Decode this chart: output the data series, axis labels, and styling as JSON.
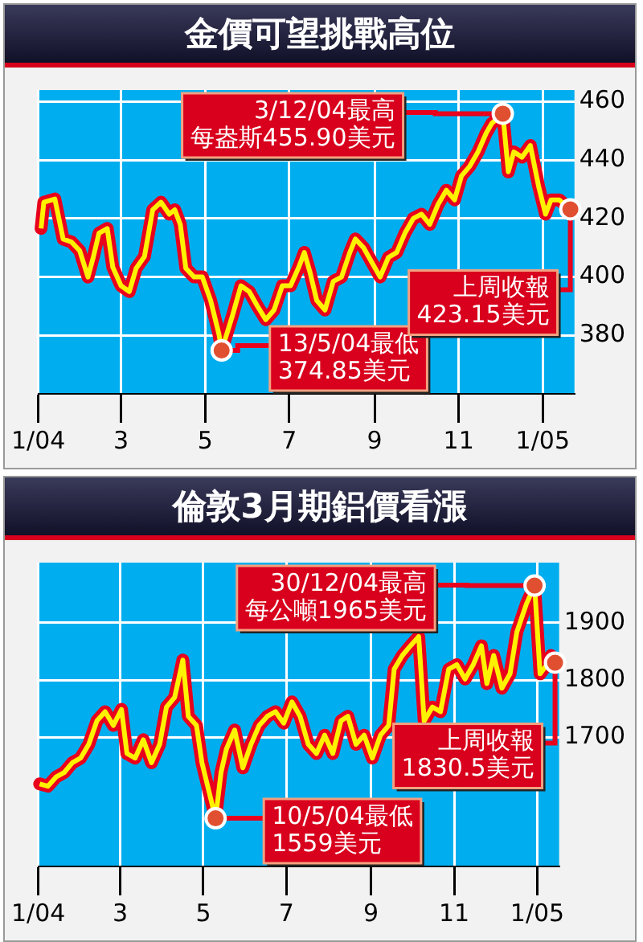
{
  "chart_data": [
    {
      "type": "line",
      "title": "金價可望挑戰高位",
      "color": "#fff200",
      "x": [
        "2004-01-03",
        "2004-01-05",
        "2004-01-13",
        "2004-01-19",
        "2004-01-25",
        "2004-01-31",
        "2004-02-06",
        "2004-02-10",
        "2004-02-14",
        "2004-02-20",
        "2004-02-24",
        "2004-03-01",
        "2004-03-07",
        "2004-03-12",
        "2004-03-18",
        "2004-03-24",
        "2004-03-30",
        "2004-04-05",
        "2004-04-09",
        "2004-04-13",
        "2004-04-17",
        "2004-04-23",
        "2004-04-29",
        "2004-05-05",
        "2004-05-11",
        "2004-05-13",
        "2004-05-21",
        "2004-05-27",
        "2004-06-02",
        "2004-06-08",
        "2004-06-14",
        "2004-06-20",
        "2004-06-26",
        "2004-07-02",
        "2004-07-08",
        "2004-07-12",
        "2004-07-16",
        "2004-07-21",
        "2004-07-27",
        "2004-08-02",
        "2004-08-08",
        "2004-08-14",
        "2004-08-18",
        "2004-08-24",
        "2004-08-30",
        "2004-09-05",
        "2004-09-11",
        "2004-09-17",
        "2004-09-23",
        "2004-09-29",
        "2004-10-05",
        "2004-10-11",
        "2004-10-17",
        "2004-10-23",
        "2004-10-29",
        "2004-11-03",
        "2004-11-09",
        "2004-11-15",
        "2004-11-21",
        "2004-11-25",
        "2004-12-03",
        "2004-12-07",
        "2004-12-11",
        "2004-12-17",
        "2004-12-23",
        "2004-12-29",
        "2005-01-03",
        "2005-01-07",
        "2005-01-13",
        "2005-01-21"
      ],
      "values": [
        416.6,
        425.6,
        426.7,
        413,
        412,
        409,
        400,
        407,
        415,
        416.6,
        403.4,
        397,
        395,
        403,
        407,
        423,
        425.6,
        421.5,
        423,
        418,
        403,
        400,
        400,
        392,
        380.5,
        374.85,
        387,
        397,
        395,
        390,
        385.4,
        388.7,
        397,
        397,
        403.4,
        408.4,
        401.8,
        392,
        388.7,
        398.5,
        400,
        408.4,
        413,
        410,
        405,
        400,
        406.7,
        408.4,
        415,
        420,
        421.5,
        418,
        424.8,
        429.7,
        426.4,
        434.6,
        437.9,
        442.8,
        449.3,
        452.6,
        455.9,
        436,
        442.8,
        441,
        445,
        431,
        421.5,
        426.4,
        426.4,
        423.15
      ],
      "xlim": [
        "2004-01-01",
        "2005-01-24"
      ],
      "xticks": [
        {
          "value": "2004-01-01",
          "label": "1/04"
        },
        {
          "value": "2004-03-01",
          "label": "3"
        },
        {
          "value": "2004-05-01",
          "label": "5"
        },
        {
          "value": "2004-07-01",
          "label": "7"
        },
        {
          "value": "2004-09-01",
          "label": "9"
        },
        {
          "value": "2004-11-01",
          "label": "11"
        },
        {
          "value": "2005-01-01",
          "label": "1/05"
        }
      ],
      "ylim": [
        360,
        464
      ],
      "yticks": [
        380,
        400,
        420,
        440,
        460
      ],
      "grid": true,
      "annotations": [
        {
          "text": "3/12/04最高",
          "x": "2004-12-03",
          "y": 455.9
        },
        "每盎斯455.90美元",
        {
          "text": "13/5/04最低",
          "x": "2004-05-13",
          "y": 374.85
        },
        "374.85美元",
        {
          "text": "上周收報",
          "x": "2005-01-21",
          "y": 423.15
        },
        "423.15美元"
      ]
    },
    {
      "type": "line",
      "title": "倫敦3月期鋁價看漲",
      "color": "#fff200",
      "x": [
        "2004-01-02",
        "2004-01-08",
        "2004-01-14",
        "2004-01-20",
        "2004-01-26",
        "2004-02-01",
        "2004-02-07",
        "2004-02-13",
        "2004-02-19",
        "2004-02-25",
        "2004-03-02",
        "2004-03-06",
        "2004-03-12",
        "2004-03-18",
        "2004-03-24",
        "2004-03-30",
        "2004-04-04",
        "2004-04-10",
        "2004-04-16",
        "2004-04-20",
        "2004-04-26",
        "2004-04-30",
        "2004-05-10",
        "2004-05-14",
        "2004-05-18",
        "2004-05-24",
        "2004-05-30",
        "2004-06-05",
        "2004-06-11",
        "2004-06-17",
        "2004-06-23",
        "2004-06-29",
        "2004-07-05",
        "2004-07-11",
        "2004-07-17",
        "2004-07-23",
        "2004-07-29",
        "2004-08-04",
        "2004-08-10",
        "2004-08-15",
        "2004-08-21",
        "2004-08-27",
        "2004-09-02",
        "2004-09-08",
        "2004-09-14",
        "2004-09-18",
        "2004-09-24",
        "2004-09-30",
        "2004-10-06",
        "2004-10-10",
        "2004-10-16",
        "2004-10-22",
        "2004-10-28",
        "2004-11-03",
        "2004-11-09",
        "2004-11-15",
        "2004-11-21",
        "2004-11-25",
        "2004-11-30",
        "2004-12-06",
        "2004-12-12",
        "2004-12-17",
        "2004-12-24",
        "2004-12-30",
        "2005-01-03",
        "2005-01-08",
        "2005-01-11",
        "2005-01-14"
      ],
      "values": [
        1619,
        1615,
        1631,
        1639,
        1656,
        1664,
        1688,
        1729,
        1745,
        1721,
        1749,
        1672,
        1664,
        1696,
        1656,
        1688,
        1753,
        1770,
        1835,
        1737,
        1721,
        1656,
        1559,
        1639,
        1680,
        1713,
        1647,
        1688,
        1721,
        1737,
        1745,
        1725,
        1762,
        1737,
        1688,
        1672,
        1704,
        1672,
        1729,
        1737,
        1688,
        1704,
        1664,
        1704,
        1721,
        1819,
        1843,
        1860,
        1876,
        1729,
        1753,
        1745,
        1819,
        1827,
        1802,
        1827,
        1860,
        1794,
        1843,
        1786,
        1811,
        1884,
        1933,
        1965,
        1811,
        1827,
        1843,
        1830.5
      ],
      "xlim": [
        "2004-01-01",
        "2005-01-17"
      ],
      "xticks": [
        {
          "value": "2004-01-01",
          "label": "1/04"
        },
        {
          "value": "2004-03-01",
          "label": "3"
        },
        {
          "value": "2004-05-01",
          "label": "5"
        },
        {
          "value": "2004-07-01",
          "label": "7"
        },
        {
          "value": "2004-09-01",
          "label": "9"
        },
        {
          "value": "2004-11-01",
          "label": "11"
        },
        {
          "value": "2005-01-01",
          "label": "1/05"
        }
      ],
      "ylim": [
        1475,
        2005
      ],
      "yticks": [
        1700,
        1800,
        1900
      ],
      "grid": true,
      "annotations": [
        {
          "text": "30/12/04最高",
          "x": "2004-12-30",
          "y": 1965
        },
        "每公噸1965美元",
        {
          "text": "10/5/04最低",
          "x": "2004-05-10",
          "y": 1559
        },
        "1559美元",
        {
          "text": "上周收報",
          "x": "2005-01-14",
          "y": 1830.5
        },
        "1830.5美元"
      ]
    }
  ]
}
